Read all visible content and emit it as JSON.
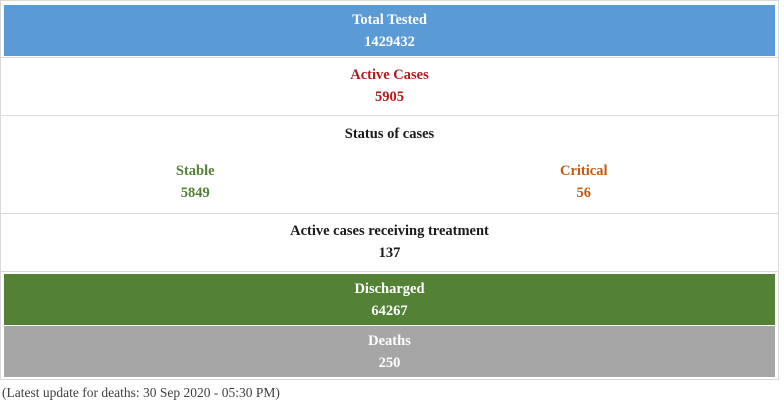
{
  "colors": {
    "blue_bg": "#5b9bd5",
    "green_bg": "#538135",
    "gray_bg": "#a6a6a6",
    "white_text": "#ffffff",
    "red_text": "#b01c1c",
    "stable_green_text": "#538135",
    "critical_orange_text": "#c55a11",
    "black_text": "#1a1a1a",
    "border": "#d9d9d9",
    "footer_text": "#3f3f3f"
  },
  "stats": {
    "total_tested": {
      "label": "Total Tested",
      "value": "1429432"
    },
    "active_cases": {
      "label": "Active Cases",
      "value": "5905"
    },
    "status_of_cases": {
      "header": "Status of cases",
      "stable": {
        "label": "Stable",
        "value": "5849"
      },
      "critical": {
        "label": "Critical",
        "value": "56"
      }
    },
    "receiving_treatment": {
      "label": "Active cases receiving treatment",
      "value": "137"
    },
    "discharged": {
      "label": "Discharged",
      "value": "64267"
    },
    "deaths": {
      "label": "Deaths",
      "value": "250"
    }
  },
  "footer": {
    "note": "(Latest update for deaths: 30 Sep 2020 - 05:30 PM)"
  }
}
